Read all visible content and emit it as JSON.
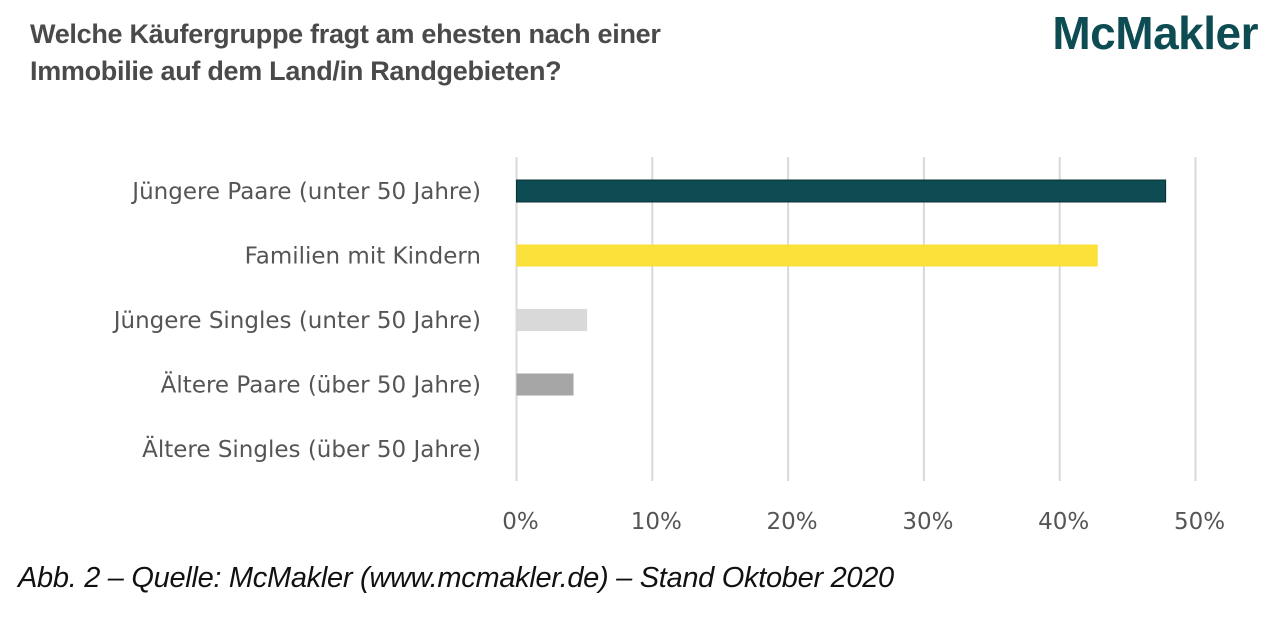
{
  "header": {
    "title_line1": "Welche Käufergruppe fragt am ehesten nach einer",
    "title_line2": "Immobilie auf dem Land/in Randgebieten?",
    "logo": "McMakler"
  },
  "caption": "Abb. 2 – Quelle: McMakler (www.mcmakler.de) – Stand Oktober 2020",
  "chart_data": {
    "type": "bar",
    "orientation": "horizontal",
    "title": "Welche Käufergruppe fragt am ehesten nach einer Immobilie auf dem Land/in Randgebieten?",
    "xlabel": "",
    "ylabel": "",
    "categories": [
      "Jüngere Paare (unter 50 Jahre)",
      "Familien mit Kindern",
      "Jüngere Singles (unter 50 Jahre)",
      "Ältere Paare (über 50 Jahre)",
      "Ältere Singles (über 50 Jahre)"
    ],
    "values": [
      47.8,
      42.8,
      5.2,
      4.2,
      0
    ],
    "unit": "%",
    "colors": [
      "#0e4c53",
      "#fbe03a",
      "#d9d9d9",
      "#a6a6a6",
      "#bfbfbf"
    ],
    "xlim": [
      0,
      50
    ],
    "xticks": [
      0,
      10,
      20,
      30,
      40,
      50
    ],
    "xtick_labels": [
      "0%",
      "10%",
      "20%",
      "30%",
      "40%",
      "50%"
    ],
    "grid": "vertical",
    "legend": "none"
  }
}
